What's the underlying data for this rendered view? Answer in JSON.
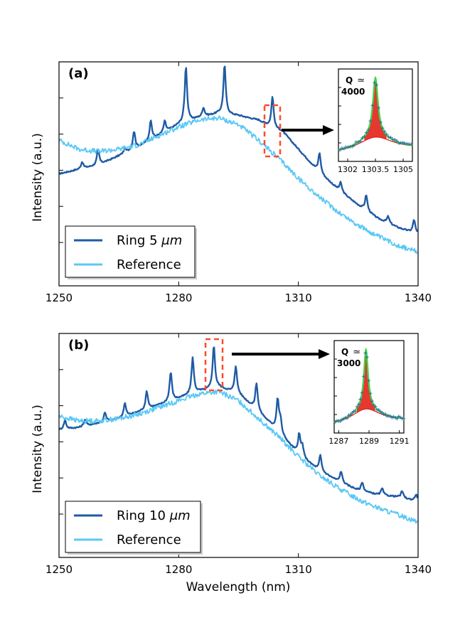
{
  "x_axis_label": "Wavelength (nm)",
  "chart_data": [
    {
      "type": "line",
      "panel_label": "(a)",
      "ylabel": "Intensity (a.u.)",
      "x_ticks": [
        "1250",
        "1280",
        "1310",
        "1340"
      ],
      "xlim": [
        1250,
        1340
      ],
      "series": [
        {
          "name": "Ring 5 μm",
          "legend_main": "Ring 5 ",
          "legend_unit": "μm",
          "color": "#1f5aa6",
          "points": [
            [
              1250,
              0.5
            ],
            [
              1255,
              0.52
            ],
            [
              1260,
              0.54
            ],
            [
              1265,
              0.58
            ],
            [
              1270,
              0.62
            ],
            [
              1275,
              0.67
            ],
            [
              1280,
              0.72
            ],
            [
              1285,
              0.75
            ],
            [
              1290,
              0.77
            ],
            [
              1295,
              0.76
            ],
            [
              1300,
              0.74
            ],
            [
              1303,
              0.71
            ],
            [
              1306,
              0.69
            ],
            [
              1310,
              0.61
            ],
            [
              1315,
              0.51
            ],
            [
              1320,
              0.43
            ],
            [
              1325,
              0.36
            ],
            [
              1330,
              0.3
            ],
            [
              1335,
              0.26
            ],
            [
              1340,
              0.23
            ]
          ],
          "peaks": [
            [
              1255.8,
              0.03
            ],
            [
              1259.8,
              0.07
            ],
            [
              1266.5,
              0.02
            ],
            [
              1268.8,
              0.08
            ],
            [
              1273,
              0.09
            ],
            [
              1276.5,
              0.05
            ],
            [
              1281.8,
              0.25
            ],
            [
              1286.2,
              0.04
            ],
            [
              1291.5,
              0.22
            ],
            [
              1303.5,
              0.14
            ],
            [
              1315.3,
              0.09
            ],
            [
              1320.6,
              0.04
            ],
            [
              1327,
              0.07
            ],
            [
              1332.5,
              0.03
            ],
            [
              1339,
              0.06
            ]
          ]
        },
        {
          "name": "Reference",
          "legend_main": "Reference",
          "legend_unit": "",
          "color": "#5ac8f5",
          "points": [
            [
              1250,
              0.65
            ],
            [
              1255,
              0.61
            ],
            [
              1260,
              0.6
            ],
            [
              1265,
              0.61
            ],
            [
              1270,
              0.63
            ],
            [
              1275,
              0.67
            ],
            [
              1280,
              0.71
            ],
            [
              1285,
              0.74
            ],
            [
              1290,
              0.75
            ],
            [
              1295,
              0.72
            ],
            [
              1300,
              0.65
            ],
            [
              1305,
              0.57
            ],
            [
              1310,
              0.48
            ],
            [
              1315,
              0.4
            ],
            [
              1320,
              0.33
            ],
            [
              1325,
              0.27
            ],
            [
              1330,
              0.22
            ],
            [
              1335,
              0.18
            ],
            [
              1340,
              0.15
            ]
          ],
          "peaks": []
        }
      ],
      "inset": {
        "q_label": "Q",
        "approx": "≃",
        "q_value": "4000",
        "x_ticks": [
          "1302",
          "1303.5",
          "1305"
        ],
        "xlim": [
          1301.5,
          1305.5
        ],
        "center": 1303.5,
        "colors": {
          "data": "#2c6e99",
          "fit": "#3ed94a",
          "component": "#e2231a"
        }
      }
    },
    {
      "type": "line",
      "panel_label": "(b)",
      "ylabel": "Intensity (a.u.)",
      "x_ticks": [
        "1250",
        "1280",
        "1310",
        "1340"
      ],
      "xlim": [
        1250,
        1340
      ],
      "series": [
        {
          "name": "Ring 10 μm",
          "legend_main": "Ring 10 ",
          "legend_unit": "μm",
          "color": "#1f5aa6",
          "points": [
            [
              1250,
              0.57
            ],
            [
              1255,
              0.58
            ],
            [
              1260,
              0.6
            ],
            [
              1265,
              0.62
            ],
            [
              1270,
              0.65
            ],
            [
              1275,
              0.68
            ],
            [
              1280,
              0.71
            ],
            [
              1285,
              0.74
            ],
            [
              1290,
              0.76
            ],
            [
              1295,
              0.73
            ],
            [
              1300,
              0.65
            ],
            [
              1305,
              0.56
            ],
            [
              1310,
              0.46
            ],
            [
              1315,
              0.39
            ],
            [
              1320,
              0.34
            ],
            [
              1325,
              0.3
            ],
            [
              1330,
              0.28
            ],
            [
              1335,
              0.27
            ],
            [
              1340,
              0.25
            ]
          ],
          "peaks": [
            [
              1251.5,
              0.04
            ],
            [
              1256.5,
              0.03
            ],
            [
              1261.5,
              0.04
            ],
            [
              1266.5,
              0.06
            ],
            [
              1272,
              0.08
            ],
            [
              1278,
              0.13
            ],
            [
              1283.5,
              0.16
            ],
            [
              1288.8,
              0.19
            ],
            [
              1294.3,
              0.12
            ],
            [
              1299.5,
              0.12
            ],
            [
              1304.8,
              0.14
            ],
            [
              1305.5,
              0.06
            ],
            [
              1310.2,
              0.09
            ],
            [
              1311,
              0.05
            ],
            [
              1315.5,
              0.07
            ],
            [
              1320.7,
              0.05
            ],
            [
              1326,
              0.04
            ],
            [
              1331,
              0.03
            ],
            [
              1336,
              0.03
            ],
            [
              1339.5,
              0.03
            ]
          ]
        },
        {
          "name": "Reference",
          "legend_main": "Reference",
          "legend_unit": "",
          "color": "#5ac8f5",
          "points": [
            [
              1250,
              0.63
            ],
            [
              1255,
              0.61
            ],
            [
              1260,
              0.61
            ],
            [
              1265,
              0.62
            ],
            [
              1270,
              0.64
            ],
            [
              1275,
              0.67
            ],
            [
              1280,
              0.7
            ],
            [
              1285,
              0.73
            ],
            [
              1290,
              0.74
            ],
            [
              1295,
              0.7
            ],
            [
              1300,
              0.62
            ],
            [
              1305,
              0.54
            ],
            [
              1310,
              0.45
            ],
            [
              1315,
              0.37
            ],
            [
              1320,
              0.31
            ],
            [
              1325,
              0.26
            ],
            [
              1330,
              0.22
            ],
            [
              1335,
              0.19
            ],
            [
              1340,
              0.16
            ]
          ],
          "peaks": []
        }
      ],
      "inset": {
        "q_label": "Q",
        "approx": "≃",
        "q_value": "3000",
        "x_ticks": [
          "1287",
          "1289",
          "1291"
        ],
        "xlim": [
          1286.7,
          1291.3
        ],
        "center": 1288.8,
        "colors": {
          "data": "#2c6e99",
          "fit": "#3ed94a",
          "component": "#e2231a"
        }
      }
    }
  ],
  "colors": {
    "dashed_box": "#ff4a2a",
    "arrow": "#000000",
    "axes": "#000000"
  }
}
